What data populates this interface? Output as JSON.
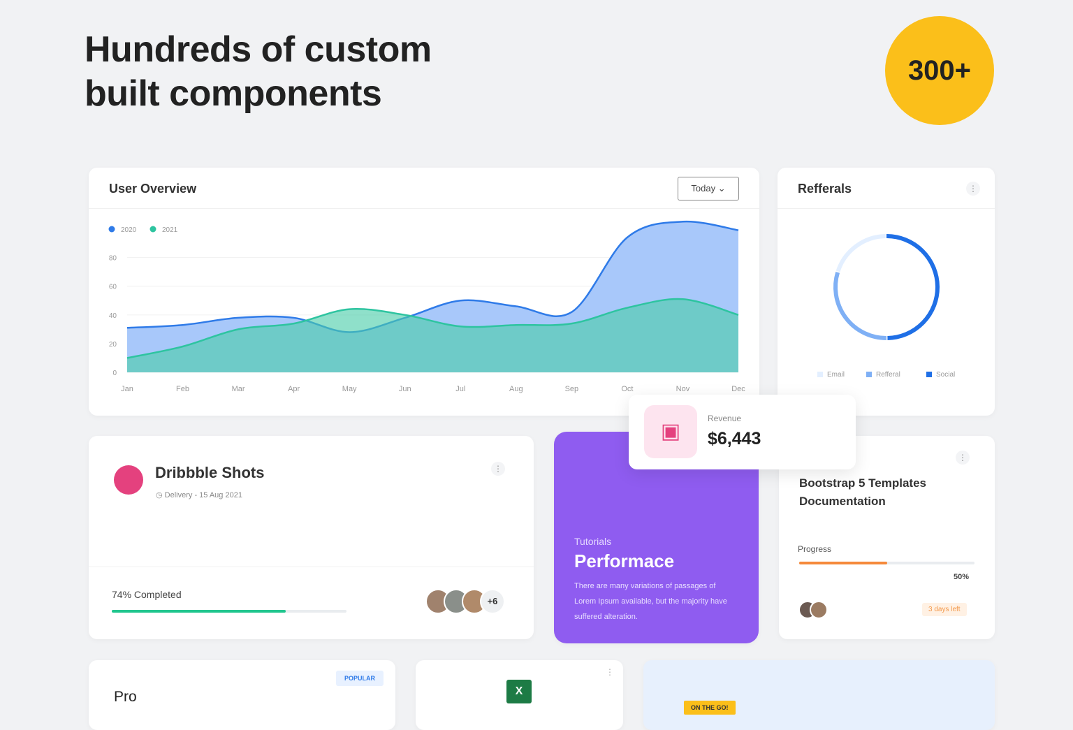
{
  "header": {
    "title_line1": "Hundreds of custom",
    "title_line2": "built components",
    "badge": "300+"
  },
  "user_overview": {
    "title": "User Overview",
    "filter": "Today"
  },
  "referrals": {
    "title": "Refferals"
  },
  "chart_data": [
    {
      "type": "area",
      "categories": [
        "Jan",
        "Feb",
        "Mar",
        "Apr",
        "May",
        "Jun",
        "Jul",
        "Aug",
        "Sep",
        "Oct",
        "Nov",
        "Dec"
      ],
      "series": [
        {
          "name": "2020",
          "color": "#2f7be8",
          "values": [
            31,
            33,
            38,
            38,
            28,
            38,
            50,
            46,
            42,
            94,
            105,
            99
          ]
        },
        {
          "name": "2021",
          "color": "#2ec4a0",
          "values": [
            10,
            18,
            30,
            34,
            44,
            40,
            32,
            33,
            34,
            45,
            51,
            40
          ]
        }
      ],
      "ylim": [
        0,
        110
      ],
      "yticks": [
        0,
        20,
        40,
        60,
        80
      ],
      "grid": true,
      "legend": "top-left"
    },
    {
      "type": "donut",
      "categories": [
        "Email",
        "Refferal",
        "Social"
      ],
      "values": [
        20,
        30,
        50
      ],
      "colors": [
        "#e3efff",
        "#7fb0f5",
        "#1f6fe6"
      ],
      "legend": "bottom"
    }
  ],
  "revenue": {
    "label": "Revenue",
    "value": "$6,443"
  },
  "dribbble": {
    "title": "Dribbble Shots",
    "delivery": "Delivery - 15 Aug 2021",
    "completed": "74% Completed",
    "progress": 74,
    "more": "+6"
  },
  "tutorial": {
    "kicker": "Tutorials",
    "title": "Performace",
    "text": "There are many variations of passages of Lorem Ipsum available, but the majority have suffered alteration."
  },
  "bootstrap": {
    "title": "Bootstrap 5 Templates Documentation",
    "progress_label": "Progress",
    "progress": 50,
    "percent": "50%",
    "badge": "3 days left"
  },
  "pricing": {
    "badge": "POPULAR",
    "plan": "Pro"
  },
  "promo": {
    "badge": "ON THE GO!"
  }
}
